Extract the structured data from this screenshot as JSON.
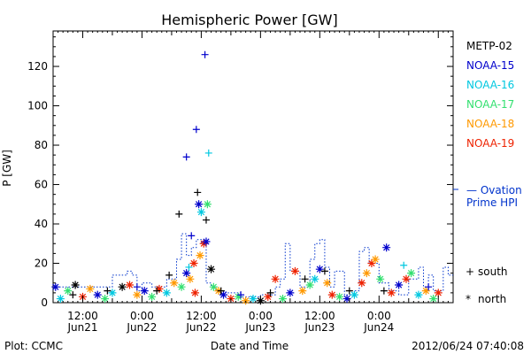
{
  "chart_data": {
    "type": "scatter",
    "title": "Hemispheric Power [GW]",
    "ylabel": "P [GW]",
    "xlabel": "Date and Time",
    "ylim": [
      0,
      138
    ],
    "xlim": [
      "2012-06-21 06:00",
      "2012-06-24 15:00"
    ],
    "yticks": [
      0,
      20,
      40,
      60,
      80,
      100,
      120
    ],
    "xticks": [
      {
        "time": "2012-06-21 12:00",
        "label": "12:00",
        "sub": "Jun21"
      },
      {
        "time": "2012-06-22 00:00",
        "label": "0:00",
        "sub": "Jun22"
      },
      {
        "time": "2012-06-22 12:00",
        "label": "12:00",
        "sub": "Jun22"
      },
      {
        "time": "2012-06-23 00:00",
        "label": "0:00",
        "sub": "Jun23"
      },
      {
        "time": "2012-06-23 12:00",
        "label": "12:00",
        "sub": "Jun23"
      },
      {
        "time": "2012-06-24 00:00",
        "label": "0:00",
        "sub": "Jun24"
      }
    ],
    "legend": [
      {
        "name": "METP-02",
        "color": "#000000"
      },
      {
        "name": "NOAA-15",
        "color": "#0000cc"
      },
      {
        "name": "NOAA-16",
        "color": "#00c8e0"
      },
      {
        "name": "NOAA-17",
        "color": "#33e070"
      },
      {
        "name": "NOAA-18",
        "color": "#ff9900"
      },
      {
        "name": "NOAA-19",
        "color": "#ee2200"
      }
    ],
    "model_series": {
      "name": "— Ovation Prime HPI",
      "label_line1": "— Ovation",
      "label_line2": "Prime HPI",
      "color": "#0033cc",
      "x": [
        "2012-06-21 06:00",
        "2012-06-21 12:00",
        "2012-06-21 18:00",
        "2012-06-21 21:00",
        "2012-06-21 22:00",
        "2012-06-21 23:00",
        "2012-06-22 00:00",
        "2012-06-22 02:00",
        "2012-06-22 05:00",
        "2012-06-22 07:00",
        "2012-06-22 08:00",
        "2012-06-22 09:00",
        "2012-06-22 10:00",
        "2012-06-22 11:00",
        "2012-06-22 12:00",
        "2012-06-22 13:00",
        "2012-06-22 14:00",
        "2012-06-22 15:00",
        "2012-06-22 17:00",
        "2012-06-22 20:00",
        "2012-06-23 00:00",
        "2012-06-23 03:00",
        "2012-06-23 04:00",
        "2012-06-23 05:00",
        "2012-06-23 06:00",
        "2012-06-23 08:00",
        "2012-06-23 10:00",
        "2012-06-23 11:00",
        "2012-06-23 12:00",
        "2012-06-23 13:00",
        "2012-06-23 14:00",
        "2012-06-23 15:00",
        "2012-06-23 17:00",
        "2012-06-23 19:00",
        "2012-06-23 20:00",
        "2012-06-23 21:00",
        "2012-06-23 22:00",
        "2012-06-24 00:00",
        "2012-06-24 02:00",
        "2012-06-24 04:00",
        "2012-06-24 06:00",
        "2012-06-24 08:00",
        "2012-06-24 09:00",
        "2012-06-24 10:00",
        "2012-06-24 11:00",
        "2012-06-24 13:00",
        "2012-06-24 14:00"
      ],
      "y": [
        8,
        8,
        14,
        16,
        14,
        6,
        10,
        8,
        12,
        22,
        35,
        24,
        28,
        32,
        30,
        10,
        8,
        6,
        5,
        3,
        4,
        8,
        12,
        30,
        16,
        8,
        22,
        30,
        32,
        18,
        8,
        16,
        4,
        6,
        26,
        28,
        20,
        10,
        6,
        4,
        12,
        18,
        8,
        14,
        6,
        18,
        14
      ]
    },
    "south_points": [
      {
        "x": "2012-06-22 09:00",
        "y": 74,
        "color": "#0000cc"
      },
      {
        "x": "2012-06-22 11:00",
        "y": 88,
        "color": "#0000cc"
      },
      {
        "x": "2012-06-22 12:45",
        "y": 126,
        "color": "#0000cc"
      },
      {
        "x": "2012-06-22 13:30",
        "y": 76,
        "color": "#00c8e0"
      },
      {
        "x": "2012-06-22 07:30",
        "y": 45,
        "color": "#000000"
      },
      {
        "x": "2012-06-22 11:15",
        "y": 56,
        "color": "#000000"
      },
      {
        "x": "2012-06-22 13:00",
        "y": 42,
        "color": "#000000"
      },
      {
        "x": "2012-06-22 10:00",
        "y": 34,
        "color": "#0000cc"
      },
      {
        "x": "2012-06-22 05:30",
        "y": 14,
        "color": "#000000"
      },
      {
        "x": "2012-06-22 09:30",
        "y": 18,
        "color": "#00c8e0"
      },
      {
        "x": "2012-06-21 10:00",
        "y": 4,
        "color": "#000000"
      },
      {
        "x": "2012-06-21 17:00",
        "y": 6,
        "color": "#000000"
      },
      {
        "x": "2012-06-21 23:00",
        "y": 8,
        "color": "#0000cc"
      },
      {
        "x": "2012-06-22 03:00",
        "y": 6,
        "color": "#000000"
      },
      {
        "x": "2012-06-22 16:00",
        "y": 6,
        "color": "#000000"
      },
      {
        "x": "2012-06-22 20:00",
        "y": 4,
        "color": "#0000cc"
      },
      {
        "x": "2012-06-23 02:00",
        "y": 5,
        "color": "#000000"
      },
      {
        "x": "2012-06-23 09:00",
        "y": 12,
        "color": "#000000"
      },
      {
        "x": "2012-06-23 13:00",
        "y": 16,
        "color": "#000000"
      },
      {
        "x": "2012-06-23 18:00",
        "y": 6,
        "color": "#000000"
      },
      {
        "x": "2012-06-24 01:00",
        "y": 6,
        "color": "#000000"
      },
      {
        "x": "2012-06-24 05:00",
        "y": 19,
        "color": "#00c8e0"
      },
      {
        "x": "2012-06-24 10:00",
        "y": 8,
        "color": "#0000cc"
      }
    ],
    "north_points": [
      {
        "x": "2012-06-22 11:30",
        "y": 50,
        "color": "#0000cc"
      },
      {
        "x": "2012-06-22 12:00",
        "y": 46,
        "color": "#00c8e0"
      },
      {
        "x": "2012-06-22 13:15",
        "y": 50,
        "color": "#33e070"
      },
      {
        "x": "2012-06-22 12:30",
        "y": 30,
        "color": "#ee2200"
      },
      {
        "x": "2012-06-22 13:00",
        "y": 31,
        "color": "#0000cc"
      },
      {
        "x": "2012-06-22 11:45",
        "y": 24,
        "color": "#ff9900"
      },
      {
        "x": "2012-06-22 10:30",
        "y": 20,
        "color": "#ee2200"
      },
      {
        "x": "2012-06-22 09:00",
        "y": 15,
        "color": "#0000cc"
      },
      {
        "x": "2012-06-22 09:45",
        "y": 12,
        "color": "#ff9900"
      },
      {
        "x": "2012-06-22 10:45",
        "y": 5,
        "color": "#ee2200"
      },
      {
        "x": "2012-06-22 14:00",
        "y": 17,
        "color": "#000000"
      },
      {
        "x": "2012-06-22 14:30",
        "y": 8,
        "color": "#33e070"
      },
      {
        "x": "2012-06-22 15:30",
        "y": 6,
        "color": "#ff9900"
      },
      {
        "x": "2012-06-21 06:30",
        "y": 8,
        "color": "#0000cc"
      },
      {
        "x": "2012-06-21 07:30",
        "y": 2,
        "color": "#00c8e0"
      },
      {
        "x": "2012-06-21 09:00",
        "y": 6,
        "color": "#33e070"
      },
      {
        "x": "2012-06-21 10:30",
        "y": 9,
        "color": "#000000"
      },
      {
        "x": "2012-06-21 12:00",
        "y": 3,
        "color": "#ee2200"
      },
      {
        "x": "2012-06-21 13:30",
        "y": 7,
        "color": "#ff9900"
      },
      {
        "x": "2012-06-21 15:00",
        "y": 4,
        "color": "#0000cc"
      },
      {
        "x": "2012-06-21 16:30",
        "y": 2,
        "color": "#33e070"
      },
      {
        "x": "2012-06-21 18:00",
        "y": 5,
        "color": "#00c8e0"
      },
      {
        "x": "2012-06-21 20:00",
        "y": 8,
        "color": "#000000"
      },
      {
        "x": "2012-06-21 21:30",
        "y": 9,
        "color": "#ee2200"
      },
      {
        "x": "2012-06-21 23:00",
        "y": 4,
        "color": "#ff9900"
      },
      {
        "x": "2012-06-22 00:30",
        "y": 6,
        "color": "#0000cc"
      },
      {
        "x": "2012-06-22 02:00",
        "y": 3,
        "color": "#33e070"
      },
      {
        "x": "2012-06-22 03:30",
        "y": 7,
        "color": "#ee2200"
      },
      {
        "x": "2012-06-22 05:00",
        "y": 5,
        "color": "#00c8e0"
      },
      {
        "x": "2012-06-22 06:30",
        "y": 10,
        "color": "#ff9900"
      },
      {
        "x": "2012-06-22 08:00",
        "y": 8,
        "color": "#33e070"
      },
      {
        "x": "2012-06-22 16:30",
        "y": 4,
        "color": "#0000cc"
      },
      {
        "x": "2012-06-22 18:00",
        "y": 2,
        "color": "#ee2200"
      },
      {
        "x": "2012-06-22 19:30",
        "y": 3,
        "color": "#33e070"
      },
      {
        "x": "2012-06-22 21:00",
        "y": 1,
        "color": "#ff9900"
      },
      {
        "x": "2012-06-22 22:30",
        "y": 2,
        "color": "#00c8e0"
      },
      {
        "x": "2012-06-23 00:00",
        "y": 1,
        "color": "#000000"
      },
      {
        "x": "2012-06-23 01:30",
        "y": 3,
        "color": "#ee2200"
      },
      {
        "x": "2012-06-23 03:00",
        "y": 12,
        "color": "#ee2200"
      },
      {
        "x": "2012-06-23 04:30",
        "y": 2,
        "color": "#33e070"
      },
      {
        "x": "2012-06-23 06:00",
        "y": 5,
        "color": "#0000cc"
      },
      {
        "x": "2012-06-23 07:00",
        "y": 16,
        "color": "#ee2200"
      },
      {
        "x": "2012-06-23 08:30",
        "y": 6,
        "color": "#ff9900"
      },
      {
        "x": "2012-06-23 10:00",
        "y": 9,
        "color": "#33e070"
      },
      {
        "x": "2012-06-23 11:00",
        "y": 12,
        "color": "#00c8e0"
      },
      {
        "x": "2012-06-23 12:00",
        "y": 17,
        "color": "#0000cc"
      },
      {
        "x": "2012-06-23 13:30",
        "y": 10,
        "color": "#ff9900"
      },
      {
        "x": "2012-06-23 14:30",
        "y": 4,
        "color": "#ee2200"
      },
      {
        "x": "2012-06-23 16:00",
        "y": 3,
        "color": "#33e070"
      },
      {
        "x": "2012-06-23 17:30",
        "y": 2,
        "color": "#0000cc"
      },
      {
        "x": "2012-06-23 19:00",
        "y": 4,
        "color": "#00c8e0"
      },
      {
        "x": "2012-06-23 20:30",
        "y": 10,
        "color": "#ee2200"
      },
      {
        "x": "2012-06-23 21:30",
        "y": 15,
        "color": "#ff9900"
      },
      {
        "x": "2012-06-23 22:30",
        "y": 20,
        "color": "#ee2200"
      },
      {
        "x": "2012-06-23 23:15",
        "y": 22,
        "color": "#ff9900"
      },
      {
        "x": "2012-06-24 00:15",
        "y": 12,
        "color": "#33e070"
      },
      {
        "x": "2012-06-24 01:30",
        "y": 28,
        "color": "#0000cc"
      },
      {
        "x": "2012-06-24 02:30",
        "y": 5,
        "color": "#ee2200"
      },
      {
        "x": "2012-06-24 04:00",
        "y": 9,
        "color": "#0000cc"
      },
      {
        "x": "2012-06-24 05:30",
        "y": 12,
        "color": "#ee2200"
      },
      {
        "x": "2012-06-24 06:30",
        "y": 15,
        "color": "#33e070"
      },
      {
        "x": "2012-06-24 08:00",
        "y": 4,
        "color": "#00c8e0"
      },
      {
        "x": "2012-06-24 09:30",
        "y": 6,
        "color": "#ff9900"
      },
      {
        "x": "2012-06-24 11:00",
        "y": 2,
        "color": "#33e070"
      },
      {
        "x": "2012-06-24 12:00",
        "y": 5,
        "color": "#ee2200"
      }
    ],
    "markers": {
      "south_symbol": "+",
      "south_label": "south",
      "north_symbol": "*",
      "north_label": "north"
    }
  },
  "footer": {
    "source": "Plot: CCMC",
    "timestamp": "2012/06/24 07:40:08"
  }
}
